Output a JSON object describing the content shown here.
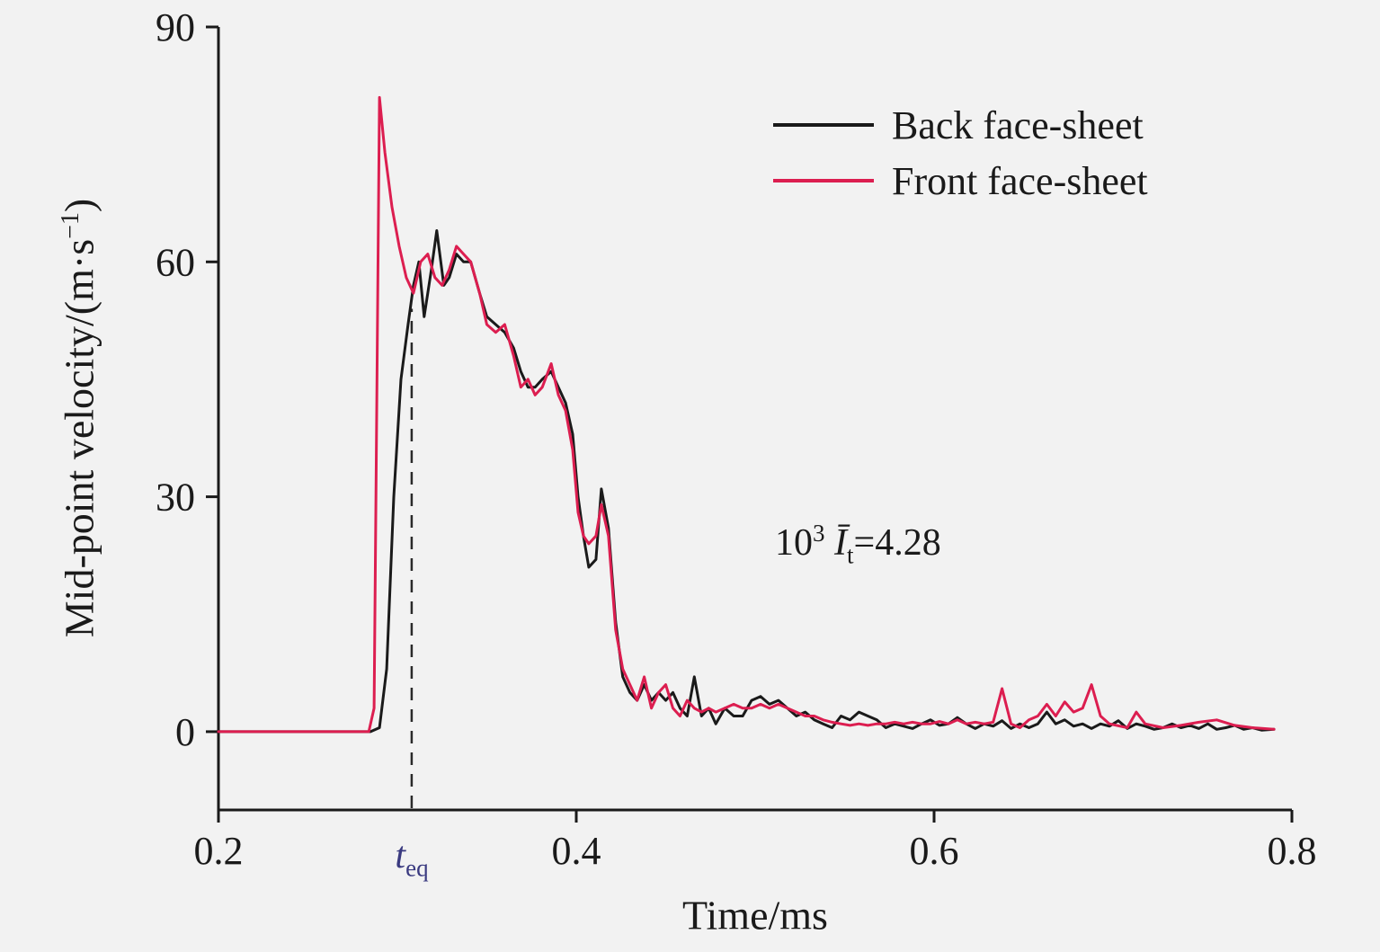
{
  "figure": {
    "background": "#f2f2f2",
    "axis_color": "#1a1a1a",
    "xlabel": "Time/ms",
    "ylabel": {
      "prefix": "Mid-point velocity/(m·s",
      "sup": "−1",
      "suffix": ")"
    },
    "x_ticks": [
      "0.2",
      "0.4",
      "0.6",
      "0.8"
    ],
    "y_ticks": [
      "0",
      "30",
      "60",
      "90"
    ]
  },
  "legend": {
    "items": [
      {
        "label": "Back face-sheet",
        "color": "#1a1a1a"
      },
      {
        "label": "Front face-sheet",
        "color": "#dc1e50"
      }
    ]
  },
  "annotation": {
    "base": "10",
    "exp": "3",
    "ibar": "Ī",
    "sub": "t",
    "rest": "=4.28"
  },
  "teq": {
    "symbol": "t",
    "sub": "eq",
    "x": 0.308,
    "dash_top": 54,
    "color": "#3a3a80"
  },
  "chart_data": {
    "type": "line",
    "title": "",
    "xlabel": "Time/ms",
    "ylabel": "Mid-point velocity/(m·s−1)",
    "xlim": [
      0.2,
      0.8
    ],
    "ylim": [
      -10,
      90
    ],
    "x_tick_values": [
      0.2,
      0.4,
      0.6,
      0.8
    ],
    "y_tick_values": [
      0,
      30,
      60,
      90
    ],
    "grid": false,
    "legend_position": "upper right",
    "annotations": [
      "10³ Īt=4.28",
      "teq dashed vertical line at t=0.308"
    ],
    "series": [
      {
        "name": "Back face-sheet",
        "color": "#1a1a1a",
        "points": [
          [
            0.2,
            0
          ],
          [
            0.24,
            0
          ],
          [
            0.27,
            0
          ],
          [
            0.285,
            0
          ],
          [
            0.29,
            0.5
          ],
          [
            0.294,
            8
          ],
          [
            0.298,
            30
          ],
          [
            0.302,
            45
          ],
          [
            0.306,
            52
          ],
          [
            0.309,
            57
          ],
          [
            0.312,
            60
          ],
          [
            0.315,
            53
          ],
          [
            0.319,
            59
          ],
          [
            0.322,
            64
          ],
          [
            0.326,
            57
          ],
          [
            0.329,
            58
          ],
          [
            0.333,
            61
          ],
          [
            0.337,
            60
          ],
          [
            0.341,
            60
          ],
          [
            0.346,
            56
          ],
          [
            0.35,
            53
          ],
          [
            0.355,
            52
          ],
          [
            0.36,
            51
          ],
          [
            0.365,
            49
          ],
          [
            0.369,
            46
          ],
          [
            0.373,
            44
          ],
          [
            0.377,
            44
          ],
          [
            0.381,
            45
          ],
          [
            0.386,
            46
          ],
          [
            0.39,
            44
          ],
          [
            0.394,
            42
          ],
          [
            0.398,
            38
          ],
          [
            0.401,
            30
          ],
          [
            0.404,
            25
          ],
          [
            0.407,
            21
          ],
          [
            0.411,
            22
          ],
          [
            0.414,
            31
          ],
          [
            0.418,
            26
          ],
          [
            0.422,
            14
          ],
          [
            0.426,
            7
          ],
          [
            0.43,
            5
          ],
          [
            0.434,
            4
          ],
          [
            0.438,
            6
          ],
          [
            0.442,
            4
          ],
          [
            0.446,
            5
          ],
          [
            0.45,
            4
          ],
          [
            0.454,
            5
          ],
          [
            0.458,
            3
          ],
          [
            0.462,
            2
          ],
          [
            0.466,
            7
          ],
          [
            0.47,
            2
          ],
          [
            0.474,
            3
          ],
          [
            0.478,
            1
          ],
          [
            0.483,
            3
          ],
          [
            0.488,
            2
          ],
          [
            0.493,
            2
          ],
          [
            0.498,
            4
          ],
          [
            0.503,
            4.5
          ],
          [
            0.508,
            3.5
          ],
          [
            0.513,
            4
          ],
          [
            0.518,
            3
          ],
          [
            0.523,
            2
          ],
          [
            0.528,
            2.5
          ],
          [
            0.533,
            1.5
          ],
          [
            0.538,
            1
          ],
          [
            0.543,
            0.5
          ],
          [
            0.548,
            2
          ],
          [
            0.553,
            1.5
          ],
          [
            0.558,
            2.5
          ],
          [
            0.563,
            2
          ],
          [
            0.568,
            1.5
          ],
          [
            0.573,
            0.5
          ],
          [
            0.578,
            1
          ],
          [
            0.583,
            0.7
          ],
          [
            0.588,
            0.4
          ],
          [
            0.593,
            1
          ],
          [
            0.598,
            1.5
          ],
          [
            0.603,
            0.8
          ],
          [
            0.608,
            1
          ],
          [
            0.613,
            1.8
          ],
          [
            0.618,
            1
          ],
          [
            0.623,
            0.4
          ],
          [
            0.628,
            1
          ],
          [
            0.633,
            0.7
          ],
          [
            0.638,
            1.4
          ],
          [
            0.643,
            0.4
          ],
          [
            0.648,
            1
          ],
          [
            0.653,
            0.5
          ],
          [
            0.658,
            1
          ],
          [
            0.663,
            2.5
          ],
          [
            0.668,
            1
          ],
          [
            0.673,
            1.5
          ],
          [
            0.678,
            0.7
          ],
          [
            0.683,
            1
          ],
          [
            0.688,
            0.4
          ],
          [
            0.693,
            1
          ],
          [
            0.698,
            0.7
          ],
          [
            0.703,
            1.4
          ],
          [
            0.708,
            0.4
          ],
          [
            0.713,
            1
          ],
          [
            0.718,
            0.7
          ],
          [
            0.723,
            0.3
          ],
          [
            0.728,
            0.5
          ],
          [
            0.733,
            1
          ],
          [
            0.738,
            0.5
          ],
          [
            0.743,
            0.8
          ],
          [
            0.748,
            0.4
          ],
          [
            0.753,
            1
          ],
          [
            0.758,
            0.3
          ],
          [
            0.763,
            0.5
          ],
          [
            0.768,
            0.8
          ],
          [
            0.773,
            0.3
          ],
          [
            0.778,
            0.5
          ],
          [
            0.783,
            0.2
          ],
          [
            0.79,
            0.3
          ]
        ]
      },
      {
        "name": "Front face-sheet",
        "color": "#dc1e50",
        "points": [
          [
            0.2,
            0
          ],
          [
            0.24,
            0
          ],
          [
            0.27,
            0
          ],
          [
            0.284,
            0
          ],
          [
            0.287,
            3
          ],
          [
            0.29,
            81
          ],
          [
            0.293,
            74
          ],
          [
            0.297,
            67
          ],
          [
            0.301,
            62
          ],
          [
            0.305,
            58
          ],
          [
            0.309,
            56
          ],
          [
            0.313,
            60
          ],
          [
            0.317,
            61
          ],
          [
            0.321,
            58
          ],
          [
            0.325,
            57
          ],
          [
            0.329,
            59
          ],
          [
            0.333,
            62
          ],
          [
            0.337,
            61
          ],
          [
            0.341,
            60
          ],
          [
            0.346,
            56
          ],
          [
            0.35,
            52
          ],
          [
            0.355,
            51
          ],
          [
            0.36,
            52
          ],
          [
            0.365,
            48
          ],
          [
            0.369,
            44
          ],
          [
            0.373,
            45
          ],
          [
            0.377,
            43
          ],
          [
            0.381,
            44
          ],
          [
            0.386,
            47
          ],
          [
            0.39,
            43
          ],
          [
            0.394,
            41
          ],
          [
            0.398,
            36
          ],
          [
            0.401,
            28
          ],
          [
            0.404,
            25
          ],
          [
            0.407,
            24
          ],
          [
            0.411,
            25
          ],
          [
            0.414,
            29
          ],
          [
            0.418,
            25
          ],
          [
            0.422,
            13
          ],
          [
            0.426,
            8
          ],
          [
            0.43,
            6
          ],
          [
            0.434,
            4
          ],
          [
            0.438,
            7
          ],
          [
            0.442,
            3
          ],
          [
            0.446,
            5
          ],
          [
            0.45,
            6
          ],
          [
            0.454,
            3
          ],
          [
            0.458,
            2
          ],
          [
            0.462,
            4
          ],
          [
            0.466,
            3
          ],
          [
            0.47,
            2.5
          ],
          [
            0.474,
            3
          ],
          [
            0.478,
            2.5
          ],
          [
            0.483,
            3
          ],
          [
            0.488,
            3.5
          ],
          [
            0.493,
            3
          ],
          [
            0.498,
            3
          ],
          [
            0.503,
            3.5
          ],
          [
            0.508,
            3
          ],
          [
            0.513,
            3.5
          ],
          [
            0.518,
            3
          ],
          [
            0.523,
            2.5
          ],
          [
            0.528,
            2
          ],
          [
            0.533,
            2
          ],
          [
            0.538,
            1.5
          ],
          [
            0.543,
            1.2
          ],
          [
            0.548,
            1
          ],
          [
            0.553,
            0.8
          ],
          [
            0.558,
            1
          ],
          [
            0.563,
            0.8
          ],
          [
            0.568,
            1
          ],
          [
            0.573,
            1
          ],
          [
            0.578,
            1.2
          ],
          [
            0.583,
            1
          ],
          [
            0.588,
            1.2
          ],
          [
            0.593,
            1
          ],
          [
            0.598,
            1
          ],
          [
            0.603,
            1.3
          ],
          [
            0.608,
            1
          ],
          [
            0.613,
            1.5
          ],
          [
            0.618,
            1
          ],
          [
            0.623,
            1.2
          ],
          [
            0.628,
            1
          ],
          [
            0.633,
            1.2
          ],
          [
            0.638,
            5.5
          ],
          [
            0.643,
            1
          ],
          [
            0.648,
            0.5
          ],
          [
            0.653,
            1.5
          ],
          [
            0.658,
            2
          ],
          [
            0.663,
            3.5
          ],
          [
            0.668,
            2
          ],
          [
            0.673,
            3.8
          ],
          [
            0.678,
            2.5
          ],
          [
            0.683,
            3
          ],
          [
            0.688,
            6
          ],
          [
            0.693,
            2
          ],
          [
            0.698,
            1
          ],
          [
            0.708,
            0.5
          ],
          [
            0.713,
            2.5
          ],
          [
            0.718,
            1
          ],
          [
            0.728,
            0.5
          ],
          [
            0.738,
            0.8
          ],
          [
            0.748,
            1.2
          ],
          [
            0.758,
            1.5
          ],
          [
            0.768,
            0.8
          ],
          [
            0.778,
            0.5
          ],
          [
            0.79,
            0.3
          ]
        ]
      }
    ]
  }
}
